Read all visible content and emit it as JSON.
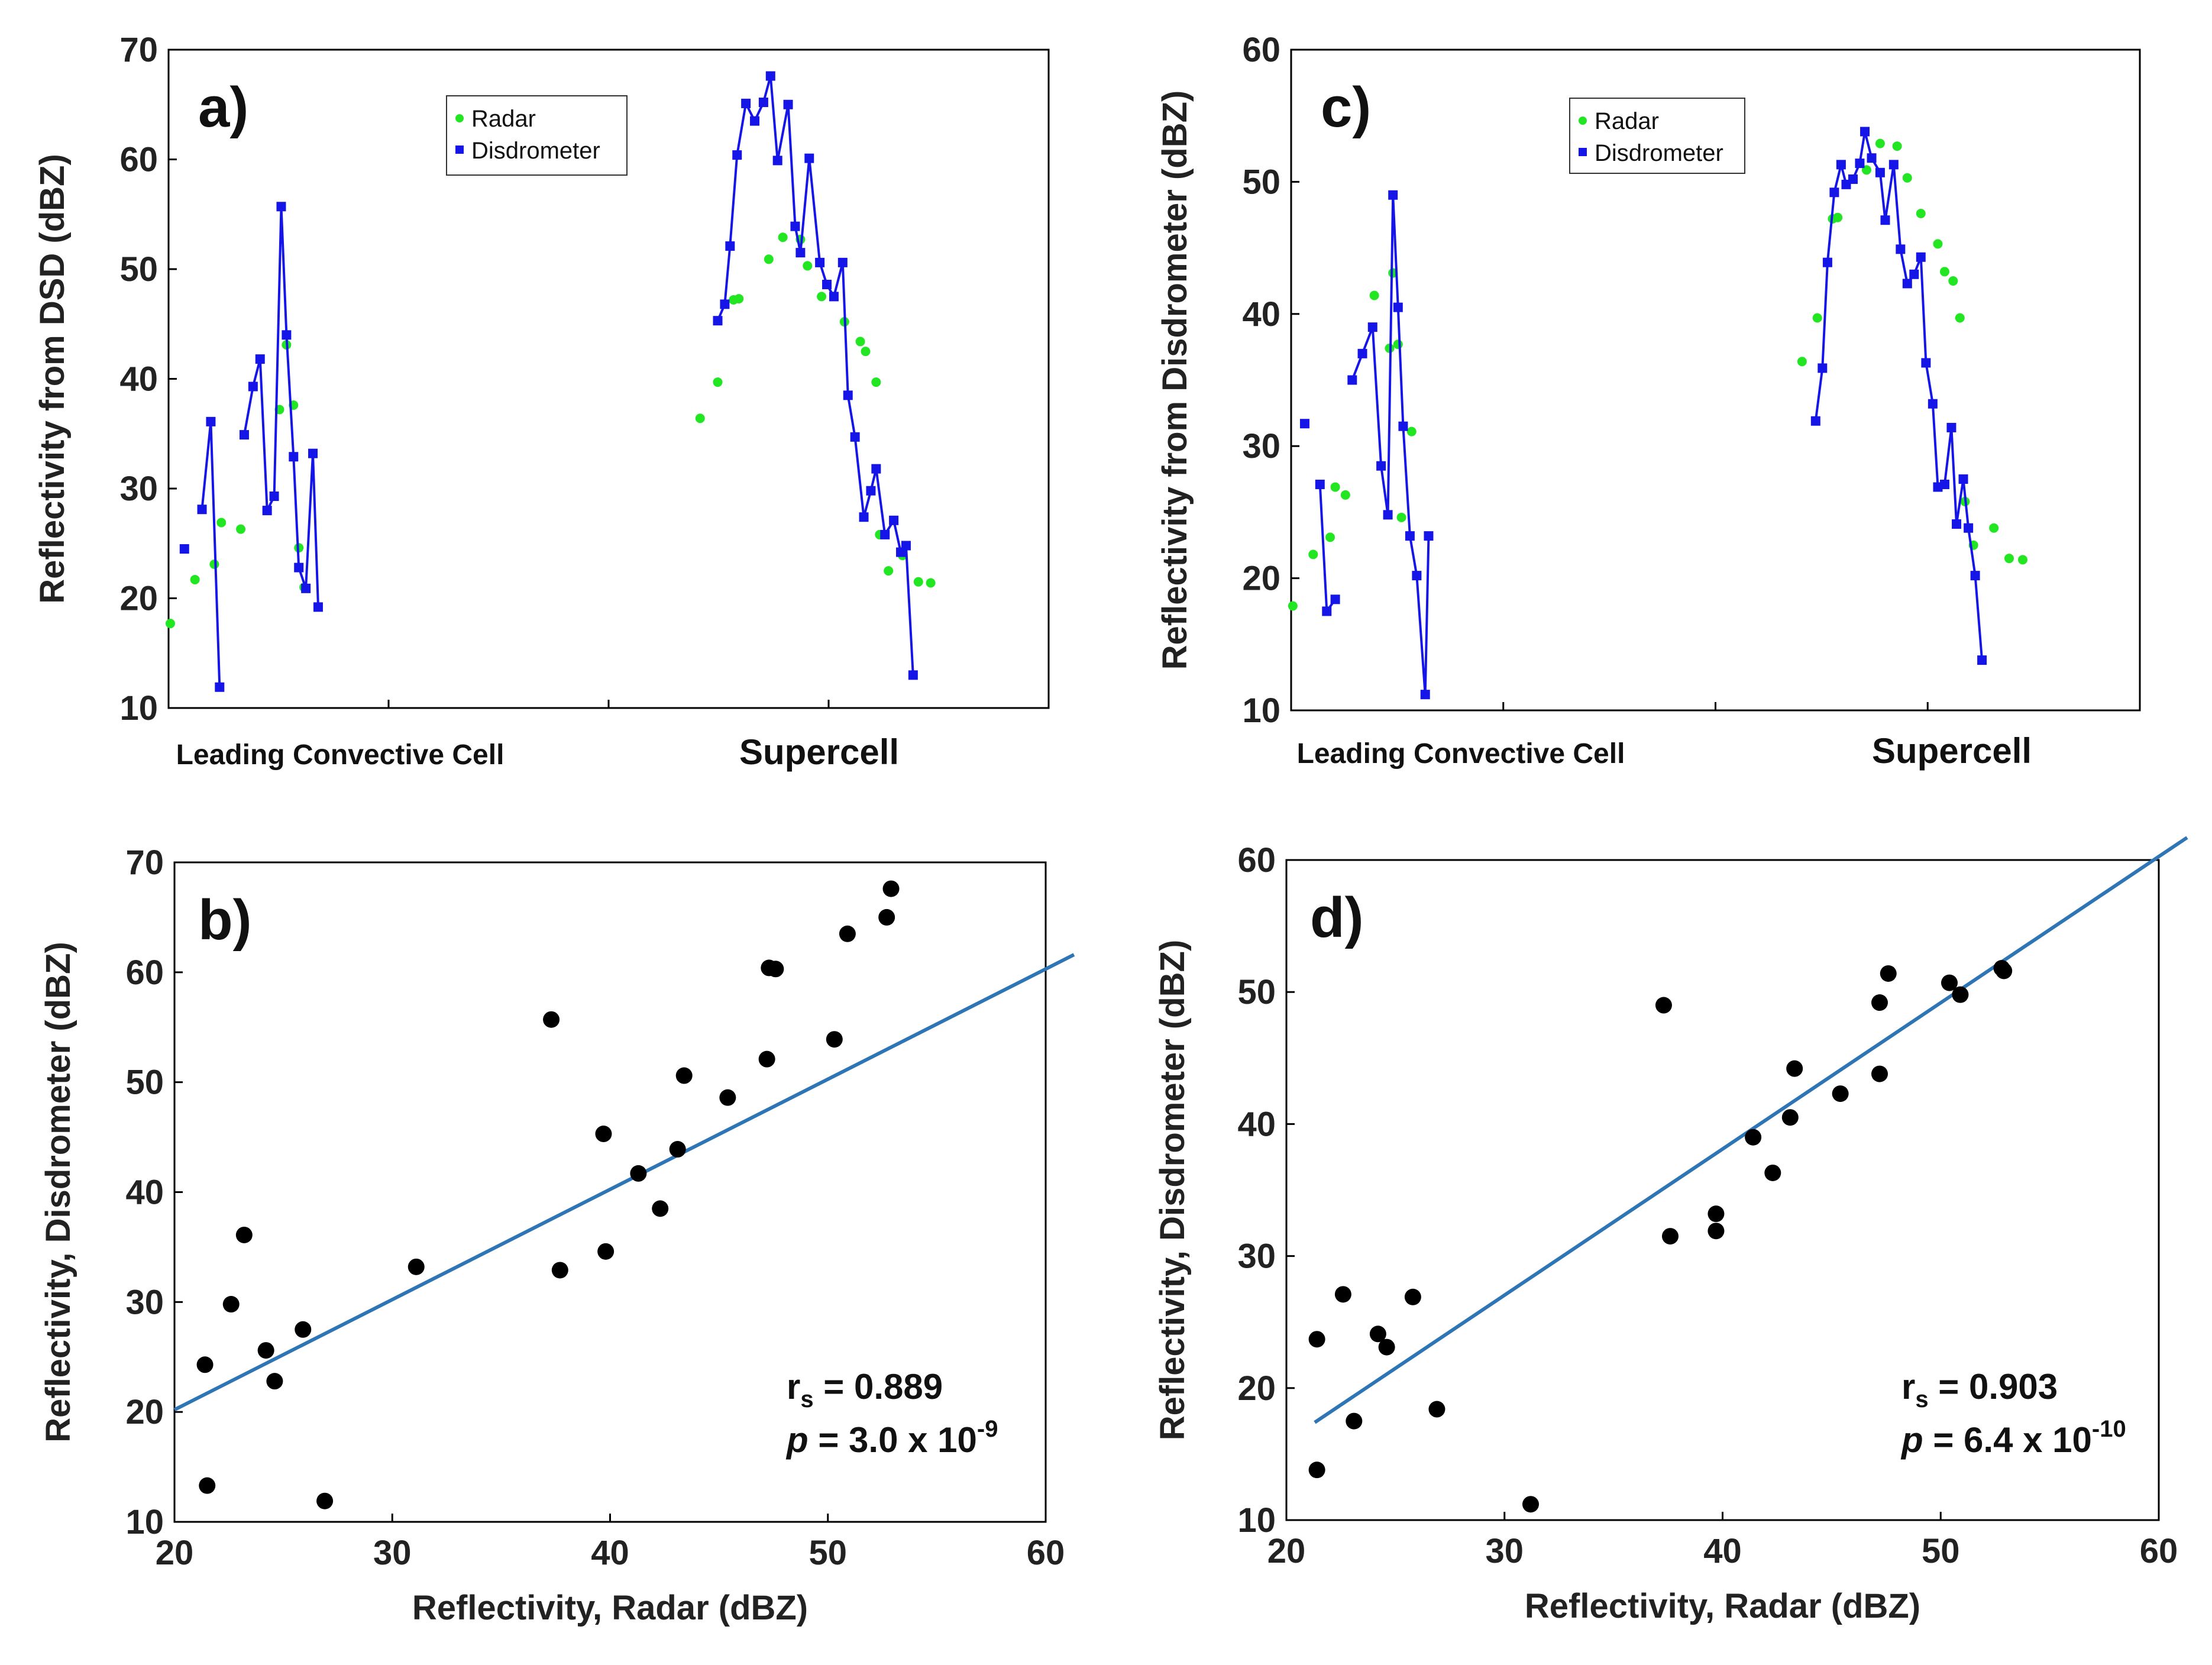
{
  "colors": {
    "radar": "#22e622",
    "disdrometer": "#1515e8",
    "scatter": "#000000",
    "fit": "#2e75b6",
    "axis": "#000000"
  },
  "chart_data": [
    {
      "panel": "a)",
      "type": "line",
      "ylabel": "Reflectivity from DSD (dBZ)",
      "ylim": [
        10,
        70
      ],
      "yticks": [
        "10",
        "20",
        "30",
        "40",
        "50",
        "60",
        "70"
      ],
      "category_labels": [
        "Leading Convective Cell",
        "Supercell"
      ],
      "legend": [
        "Radar",
        "Disdrometer"
      ],
      "legend_position": "top-center",
      "series": [
        {
          "name": "Radar",
          "style": "markers",
          "values": [
            [
              0.1,
              17.7
            ],
            [
              1.5,
              21.7
            ],
            [
              2.6,
              23.1
            ],
            [
              3.0,
              26.9
            ],
            [
              4.1,
              26.3
            ],
            [
              6.3,
              37.2
            ],
            [
              6.7,
              43.1
            ],
            [
              7.1,
              37.6
            ],
            [
              7.4,
              24.6
            ],
            [
              7.7,
              21
            ],
            [
              30.2,
              36.4
            ],
            [
              31.2,
              39.7
            ],
            [
              32.1,
              47.2
            ],
            [
              32.4,
              47.3
            ],
            [
              34.1,
              50.9
            ],
            [
              34.9,
              52.9
            ],
            [
              35.9,
              52.7
            ],
            [
              36.3,
              50.3
            ],
            [
              37.1,
              47.5
            ],
            [
              38.4,
              45.2
            ],
            [
              39.3,
              43.4
            ],
            [
              39.6,
              42.5
            ],
            [
              40.2,
              39.7
            ],
            [
              40.4,
              25.8
            ],
            [
              40.9,
              22.5
            ],
            [
              41.7,
              23.9
            ],
            [
              42.6,
              21.5
            ],
            [
              43.3,
              21.4
            ]
          ]
        },
        {
          "name": "Disdrometer",
          "style": "markers",
          "values": [
            [
              0.9,
              24.5
            ]
          ]
        },
        {
          "name": "Disdrometer",
          "style": "line-markers",
          "values": [
            [
              1.9,
              28.1
            ],
            [
              2.4,
              36.1
            ],
            [
              2.9,
              11.9
            ]
          ]
        },
        {
          "name": "Disdrometer",
          "style": "line-markers",
          "values": [
            [
              4.3,
              34.9
            ],
            [
              4.8,
              39.3
            ],
            [
              5.2,
              41.8
            ],
            [
              5.6,
              28
            ],
            [
              6.0,
              29.3
            ],
            [
              6.4,
              55.7
            ],
            [
              6.7,
              44
            ],
            [
              7.1,
              32.9
            ],
            [
              7.4,
              22.8
            ],
            [
              7.8,
              20.9
            ],
            [
              8.2,
              33.2
            ],
            [
              8.5,
              19.2
            ]
          ]
        },
        {
          "name": "Disdrometer",
          "style": "line-markers",
          "values": [
            [
              31.2,
              45.3
            ],
            [
              31.6,
              46.8
            ],
            [
              31.9,
              52.1
            ],
            [
              32.3,
              60.4
            ],
            [
              32.8,
              65.1
            ],
            [
              33.3,
              63.5
            ],
            [
              33.8,
              65.2
            ],
            [
              34.2,
              67.6
            ],
            [
              34.6,
              59.9
            ],
            [
              35.2,
              65
            ],
            [
              35.6,
              53.9
            ],
            [
              35.9,
              51.5
            ],
            [
              36.4,
              60.1
            ],
            [
              37.0,
              50.6
            ],
            [
              37.4,
              48.6
            ],
            [
              37.8,
              47.5
            ],
            [
              38.3,
              50.6
            ],
            [
              38.6,
              38.5
            ],
            [
              39.0,
              34.7
            ],
            [
              39.5,
              27.4
            ],
            [
              39.9,
              29.8
            ],
            [
              40.2,
              31.8
            ],
            [
              40.7,
              25.8
            ],
            [
              41.2,
              27.1
            ],
            [
              41.6,
              24.2
            ],
            [
              41.9,
              24.8
            ],
            [
              42.3,
              13
            ]
          ]
        }
      ]
    },
    {
      "panel": "b)",
      "type": "scatter",
      "xlabel": "Reflectivity, Radar (dBZ)",
      "ylabel": "Reflectivity, Disdrometer (dBZ)",
      "xlim": [
        20,
        60
      ],
      "ylim": [
        10,
        70
      ],
      "xticks": [
        "20",
        "30",
        "40",
        "50",
        "60"
      ],
      "yticks": [
        "10",
        "20",
        "30",
        "40",
        "50",
        "60",
        "70"
      ],
      "points": [
        [
          21.4,
          24.3
        ],
        [
          21.5,
          13.3
        ],
        [
          22.6,
          29.8
        ],
        [
          23.2,
          36.1
        ],
        [
          24.2,
          25.6
        ],
        [
          24.6,
          22.8
        ],
        [
          25.9,
          27.5
        ],
        [
          26.9,
          11.9
        ],
        [
          31.1,
          33.2
        ],
        [
          37.3,
          55.7
        ],
        [
          37.7,
          32.9
        ],
        [
          39.7,
          45.3
        ],
        [
          39.8,
          34.6
        ],
        [
          41.3,
          41.7
        ],
        [
          42.3,
          38.5
        ],
        [
          43.1,
          43.9
        ],
        [
          43.4,
          50.6
        ],
        [
          45.4,
          48.6
        ],
        [
          47.2,
          52.1
        ],
        [
          47.3,
          60.4
        ],
        [
          47.6,
          60.3
        ],
        [
          50.3,
          53.9
        ],
        [
          50.9,
          63.5
        ],
        [
          52.7,
          65
        ],
        [
          52.9,
          67.6
        ]
      ],
      "fit_line": [
        [
          20,
          20.2
        ],
        [
          61.3,
          61.6
        ]
      ],
      "stats": {
        "rs_label": "r",
        "rs_sub": "s",
        "rs_value": " = 0.889",
        "p_label": "p",
        "p_value": " = 3.0 x 10",
        "p_exp": "-9"
      }
    },
    {
      "panel": "c)",
      "type": "line",
      "ylabel": "Reflectivity from Disdrometer (dBZ)",
      "ylim": [
        10,
        60
      ],
      "yticks": [
        "10",
        "20",
        "30",
        "40",
        "50",
        "60"
      ],
      "category_labels": [
        "Leading Convective Cell",
        "Supercell"
      ],
      "legend": [
        "Radar",
        "Disdrometer"
      ],
      "legend_position": "top-center",
      "series": [
        {
          "name": "Radar",
          "style": "markers",
          "values": [
            [
              0.1,
              17.9
            ],
            [
              1.3,
              21.8
            ],
            [
              2.3,
              23.1
            ],
            [
              2.6,
              26.9
            ],
            [
              3.2,
              26.3
            ],
            [
              4.9,
              41.4
            ],
            [
              5.8,
              37.4
            ],
            [
              6.0,
              43.1
            ],
            [
              6.3,
              37.7
            ],
            [
              6.5,
              24.6
            ],
            [
              7.1,
              31.1
            ],
            [
              30.1,
              36.4
            ],
            [
              31.0,
              39.7
            ],
            [
              31.9,
              47.2
            ],
            [
              32.2,
              47.3
            ],
            [
              33.9,
              50.9
            ],
            [
              34.7,
              52.9
            ],
            [
              35.7,
              52.7
            ],
            [
              36.3,
              50.3
            ],
            [
              37.1,
              47.6
            ],
            [
              38.1,
              45.3
            ],
            [
              38.5,
              43.2
            ],
            [
              39.0,
              42.5
            ],
            [
              39.4,
              39.7
            ],
            [
              39.7,
              25.8
            ],
            [
              40.2,
              22.5
            ],
            [
              41.4,
              23.8
            ],
            [
              42.3,
              21.5
            ],
            [
              43.1,
              21.4
            ]
          ]
        },
        {
          "name": "Disdrometer",
          "style": "markers",
          "values": [
            [
              0.8,
              31.7
            ]
          ]
        },
        {
          "name": "Disdrometer",
          "style": "line-markers",
          "values": [
            [
              1.7,
              27.1
            ],
            [
              2.1,
              17.5
            ],
            [
              2.6,
              18.4
            ]
          ]
        },
        {
          "name": "Disdrometer",
          "style": "line-markers",
          "values": [
            [
              3.6,
              35
            ],
            [
              4.2,
              37
            ],
            [
              4.8,
              39
            ],
            [
              5.3,
              28.5
            ],
            [
              5.7,
              24.8
            ],
            [
              6.0,
              49
            ],
            [
              6.3,
              40.5
            ],
            [
              6.6,
              31.5
            ],
            [
              7.0,
              23.2
            ],
            [
              7.4,
              20.2
            ],
            [
              7.9,
              11.2
            ],
            [
              8.1,
              23.2
            ]
          ]
        },
        {
          "name": "Disdrometer",
          "style": "line-markers",
          "values": [
            [
              30.9,
              31.9
            ],
            [
              31.3,
              35.9
            ],
            [
              31.6,
              43.9
            ],
            [
              32.0,
              49.2
            ],
            [
              32.4,
              51.3
            ],
            [
              32.7,
              49.8
            ],
            [
              33.1,
              50.2
            ],
            [
              33.5,
              51.4
            ],
            [
              33.8,
              53.8
            ],
            [
              34.2,
              51.8
            ],
            [
              34.7,
              50.7
            ],
            [
              35.0,
              47.1
            ],
            [
              35.5,
              51.3
            ],
            [
              35.9,
              44.9
            ],
            [
              36.3,
              42.3
            ],
            [
              36.7,
              43
            ],
            [
              37.1,
              44.3
            ],
            [
              37.4,
              36.3
            ],
            [
              37.8,
              33.2
            ],
            [
              38.1,
              26.9
            ],
            [
              38.5,
              27.1
            ],
            [
              38.9,
              31.4
            ],
            [
              39.2,
              24.1
            ],
            [
              39.6,
              27.5
            ],
            [
              39.9,
              23.8
            ],
            [
              40.3,
              20.2
            ],
            [
              40.7,
              13.8
            ]
          ]
        }
      ]
    },
    {
      "panel": "d)",
      "type": "scatter",
      "xlabel": "Reflectivity, Radar (dBZ)",
      "ylabel": "Reflectivity, Disdrometer (dBZ)",
      "xlim": [
        20,
        60
      ],
      "ylim": [
        10,
        60
      ],
      "xticks": [
        "20",
        "30",
        "40",
        "50",
        "60"
      ],
      "yticks": [
        "10",
        "20",
        "30",
        "40",
        "50",
        "60"
      ],
      "points": [
        [
          21.4,
          23.7
        ],
        [
          21.4,
          13.8
        ],
        [
          22.6,
          27.1
        ],
        [
          23.1,
          17.5
        ],
        [
          24.2,
          24.1
        ],
        [
          24.6,
          23.1
        ],
        [
          25.8,
          26.9
        ],
        [
          26.9,
          18.4
        ],
        [
          31.2,
          11.2
        ],
        [
          37.3,
          49
        ],
        [
          37.6,
          31.5
        ],
        [
          39.7,
          33.2
        ],
        [
          39.7,
          31.9
        ],
        [
          41.4,
          39
        ],
        [
          42.3,
          36.3
        ],
        [
          43.1,
          40.5
        ],
        [
          43.3,
          44.2
        ],
        [
          45.4,
          42.3
        ],
        [
          47.2,
          43.8
        ],
        [
          47.2,
          49.2
        ],
        [
          47.6,
          51.4
        ],
        [
          50.4,
          50.7
        ],
        [
          50.9,
          49.8
        ],
        [
          52.8,
          51.8
        ],
        [
          52.9,
          51.6
        ]
      ],
      "fit_line": [
        [
          21.3,
          17.4
        ],
        [
          61.3,
          61.7
        ]
      ],
      "stats": {
        "rs_label": "r",
        "rs_sub": "s",
        "rs_value": " = 0.903",
        "p_label": "p",
        "p_value": " = 6.4 x 10",
        "p_exp": "-10"
      }
    }
  ]
}
